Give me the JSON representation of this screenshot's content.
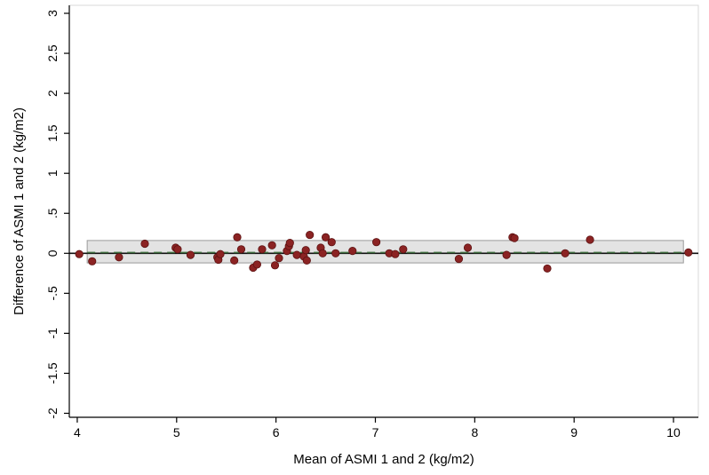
{
  "chart_data": {
    "type": "scatter",
    "xlabel": "Mean of ASMI 1 and 2 (kg/m2)",
    "ylabel": "Difference of ASMI 1 and 2 (kg/m2)",
    "xlim": [
      3.92,
      10.25
    ],
    "ylim": [
      -2.05,
      3.1
    ],
    "x_ticks": [
      4,
      5,
      6,
      7,
      8,
      9,
      10
    ],
    "x_tick_labels": [
      "4",
      "5",
      "6",
      "7",
      "8",
      "9",
      "10"
    ],
    "y_ticks": [
      3,
      2.5,
      2,
      1.5,
      1,
      0.5,
      0,
      -0.5,
      -1,
      -1.5,
      -2
    ],
    "y_tick_labels": [
      "3",
      "2.5",
      "2",
      "1.5",
      "1",
      ".5",
      "0",
      "-.5",
      "-1",
      "-1.5",
      "-2"
    ],
    "grid": false,
    "limits_of_agreement": {
      "lower": -0.12,
      "upper": 0.16,
      "x_range": [
        4.1,
        10.1
      ]
    },
    "mean_difference": 0.01,
    "zero_line": 0,
    "points": [
      {
        "x": 4.02,
        "y": -0.01
      },
      {
        "x": 4.15,
        "y": -0.1
      },
      {
        "x": 4.42,
        "y": -0.05
      },
      {
        "x": 4.68,
        "y": 0.12
      },
      {
        "x": 4.99,
        "y": 0.07
      },
      {
        "x": 5.01,
        "y": 0.05
      },
      {
        "x": 5.14,
        "y": -0.02
      },
      {
        "x": 5.41,
        "y": -0.05
      },
      {
        "x": 5.42,
        "y": -0.08
      },
      {
        "x": 5.44,
        "y": -0.01
      },
      {
        "x": 5.58,
        "y": -0.09
      },
      {
        "x": 5.61,
        "y": 0.2
      },
      {
        "x": 5.65,
        "y": 0.05
      },
      {
        "x": 5.77,
        "y": -0.18
      },
      {
        "x": 5.81,
        "y": -0.14
      },
      {
        "x": 5.86,
        "y": 0.05
      },
      {
        "x": 5.96,
        "y": 0.1
      },
      {
        "x": 5.99,
        "y": -0.15
      },
      {
        "x": 6.03,
        "y": -0.06
      },
      {
        "x": 6.11,
        "y": 0.03
      },
      {
        "x": 6.13,
        "y": 0.09
      },
      {
        "x": 6.14,
        "y": 0.13
      },
      {
        "x": 6.21,
        "y": -0.02
      },
      {
        "x": 6.28,
        "y": -0.04
      },
      {
        "x": 6.3,
        "y": 0.04
      },
      {
        "x": 6.31,
        "y": -0.09
      },
      {
        "x": 6.34,
        "y": 0.23
      },
      {
        "x": 6.45,
        "y": 0.07
      },
      {
        "x": 6.47,
        "y": 0.0
      },
      {
        "x": 6.5,
        "y": 0.2
      },
      {
        "x": 6.56,
        "y": 0.14
      },
      {
        "x": 6.6,
        "y": 0.0
      },
      {
        "x": 6.77,
        "y": 0.03
      },
      {
        "x": 7.01,
        "y": 0.14
      },
      {
        "x": 7.14,
        "y": 0.0
      },
      {
        "x": 7.2,
        "y": -0.01
      },
      {
        "x": 7.28,
        "y": 0.05
      },
      {
        "x": 7.84,
        "y": -0.07
      },
      {
        "x": 7.93,
        "y": 0.07
      },
      {
        "x": 8.32,
        "y": -0.02
      },
      {
        "x": 8.38,
        "y": 0.2
      },
      {
        "x": 8.4,
        "y": 0.19
      },
      {
        "x": 8.73,
        "y": -0.19
      },
      {
        "x": 8.91,
        "y": 0.0
      },
      {
        "x": 9.16,
        "y": 0.17
      },
      {
        "x": 10.15,
        "y": 0.01
      }
    ],
    "colors": {
      "point_fill": "#8b2323",
      "point_stroke": "#5c1212",
      "band_fill": "#e3e3e3",
      "band_stroke": "#9a9a9a",
      "mean_line": "#3f6e3f",
      "zero_line": "#111111",
      "frame": "#d9d9d9"
    }
  }
}
